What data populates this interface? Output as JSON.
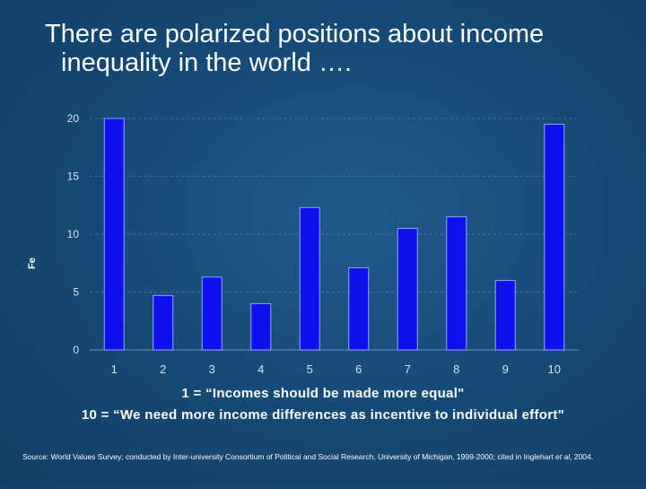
{
  "title": {
    "line1": "There are polarized positions about income",
    "line2": "inequality in the world …."
  },
  "ylabel_text": "Fе",
  "caption": {
    "line1": "1 = “Incomes should be made more equal\"",
    "line2": "10 = “We need more income differences as incentive to individual effort\""
  },
  "source": {
    "prefix": "Source: World Values Survey; conducted by Inter-university Consortium of Political and Social Research, University of Michigan, 1999-2000; cited in Inglehart ",
    "italic": "et al",
    "suffix": ", 2004."
  },
  "chart_data": {
    "type": "bar",
    "categories": [
      "1",
      "2",
      "3",
      "4",
      "5",
      "6",
      "7",
      "8",
      "9",
      "10"
    ],
    "values": [
      20,
      4.7,
      6.3,
      4.0,
      12.3,
      7.1,
      10.5,
      11.5,
      6.0,
      19.5
    ],
    "ylim": [
      0,
      20
    ],
    "yticks": [
      0,
      5,
      10,
      15,
      20
    ],
    "grid": true,
    "bar_color": "#1010ee",
    "bar_edge_color": "#8fa8ff"
  }
}
